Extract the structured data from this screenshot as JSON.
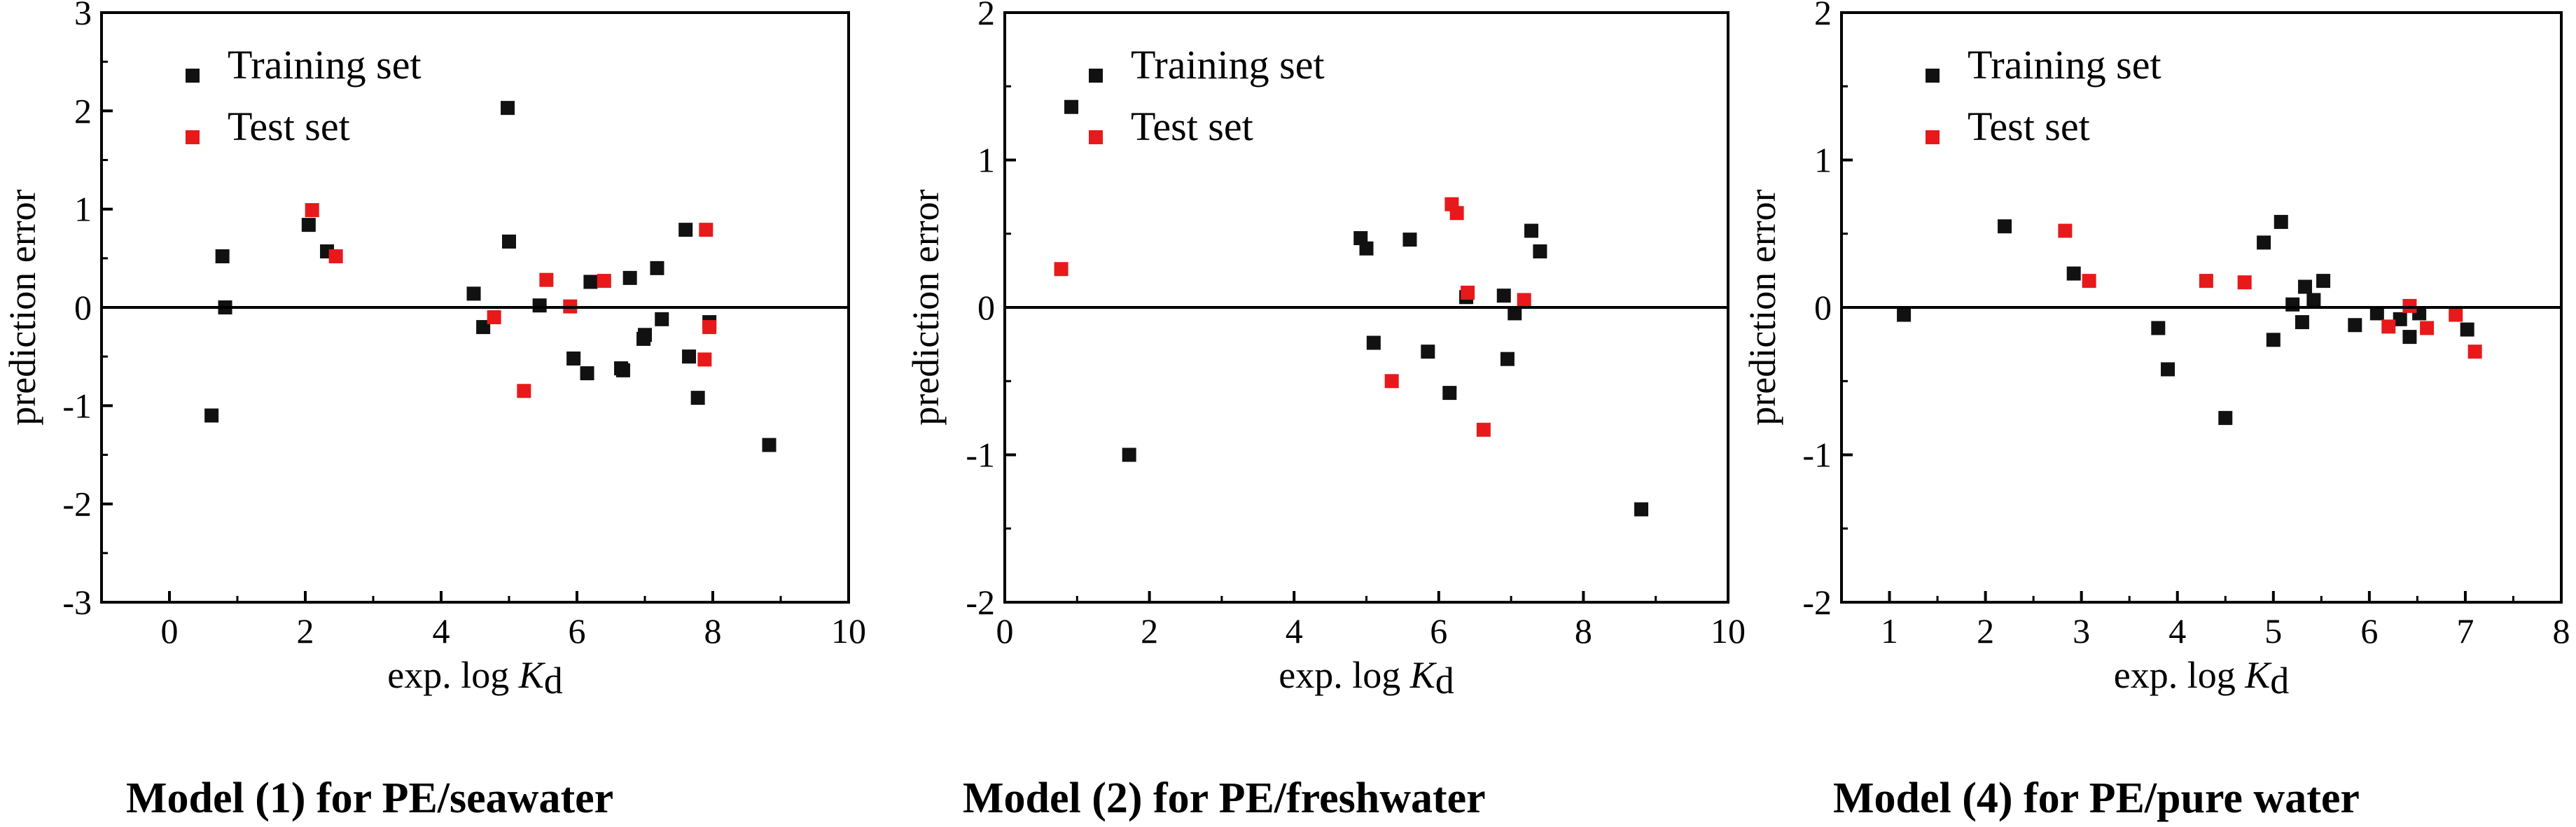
{
  "chart_data": [
    {
      "type": "scatter",
      "panel": 1,
      "caption": "Model (1) for PE/seawater",
      "xlabel_prefix": "exp. log ",
      "xlabel_var": "K",
      "xlabel_sub": "d",
      "ylabel": "prediction error",
      "xlim": [
        -1,
        10
      ],
      "ylim": [
        -3,
        3
      ],
      "xticks": [
        0,
        2,
        4,
        6,
        8,
        10
      ],
      "yticks": [
        -3,
        -2,
        -1,
        0,
        1,
        2,
        3
      ],
      "zero_line": true,
      "colors": {
        "training": "#111111",
        "test": "#e8191b"
      },
      "series": [
        {
          "name": "Training set",
          "color": "#111111",
          "points": [
            [
              0.62,
              -1.1
            ],
            [
              0.78,
              0.52
            ],
            [
              0.82,
              0.0
            ],
            [
              2.05,
              0.84
            ],
            [
              2.32,
              0.57
            ],
            [
              4.48,
              0.14
            ],
            [
              4.62,
              -0.2
            ],
            [
              4.98,
              2.03
            ],
            [
              5.0,
              0.67
            ],
            [
              5.45,
              0.02
            ],
            [
              5.95,
              -0.52
            ],
            [
              6.15,
              -0.67
            ],
            [
              6.2,
              0.26
            ],
            [
              6.65,
              -0.62
            ],
            [
              6.68,
              -0.64
            ],
            [
              6.78,
              0.3
            ],
            [
              6.98,
              -0.32
            ],
            [
              7.0,
              -0.28
            ],
            [
              7.18,
              0.4
            ],
            [
              7.25,
              -0.12
            ],
            [
              7.6,
              0.79
            ],
            [
              7.65,
              -0.5
            ],
            [
              7.78,
              -0.92
            ],
            [
              7.95,
              -0.15
            ],
            [
              8.83,
              -1.4
            ]
          ]
        },
        {
          "name": "Test set",
          "color": "#e8191b",
          "points": [
            [
              2.1,
              0.99
            ],
            [
              2.45,
              0.52
            ],
            [
              4.78,
              -0.1
            ],
            [
              5.22,
              -0.85
            ],
            [
              5.55,
              0.28
            ],
            [
              5.9,
              0.01
            ],
            [
              6.4,
              0.27
            ],
            [
              7.88,
              -0.53
            ],
            [
              7.9,
              0.79
            ],
            [
              7.95,
              -0.2
            ]
          ]
        }
      ]
    },
    {
      "type": "scatter",
      "panel": 2,
      "caption": "Model (2) for PE/freshwater",
      "xlabel_prefix": "exp. log ",
      "xlabel_var": "K",
      "xlabel_sub": "d",
      "ylabel": "prediction error",
      "xlim": [
        0,
        10
      ],
      "ylim": [
        -2,
        2
      ],
      "xticks": [
        0,
        2,
        4,
        6,
        8,
        10
      ],
      "yticks": [
        -2,
        -1,
        0,
        1,
        2
      ],
      "zero_line": true,
      "colors": {
        "training": "#111111",
        "test": "#e8191b"
      },
      "series": [
        {
          "name": "Training set",
          "color": "#111111",
          "points": [
            [
              0.92,
              1.36
            ],
            [
              1.72,
              -1.0
            ],
            [
              4.92,
              0.47
            ],
            [
              5.0,
              0.4
            ],
            [
              5.1,
              -0.24
            ],
            [
              5.6,
              0.46
            ],
            [
              5.85,
              -0.3
            ],
            [
              6.15,
              -0.58
            ],
            [
              6.38,
              0.07
            ],
            [
              6.9,
              0.08
            ],
            [
              6.95,
              -0.35
            ],
            [
              7.05,
              -0.04
            ],
            [
              7.28,
              0.52
            ],
            [
              7.4,
              0.38
            ],
            [
              8.8,
              -1.37
            ]
          ]
        },
        {
          "name": "Test set",
          "color": "#e8191b",
          "points": [
            [
              0.78,
              0.26
            ],
            [
              5.35,
              -0.5
            ],
            [
              6.18,
              0.7
            ],
            [
              6.25,
              0.64
            ],
            [
              6.4,
              0.1
            ],
            [
              6.62,
              -0.83
            ],
            [
              7.18,
              0.05
            ]
          ]
        }
      ]
    },
    {
      "type": "scatter",
      "panel": 3,
      "caption": "Model (4) for PE/pure water",
      "xlabel_prefix": "exp. log ",
      "xlabel_var": "K",
      "xlabel_sub": "d",
      "ylabel": "prediction error",
      "xlim": [
        0.5,
        8
      ],
      "ylim": [
        -2,
        2
      ],
      "xticks": [
        1,
        2,
        3,
        4,
        5,
        6,
        7,
        8
      ],
      "yticks": [
        -2,
        -1,
        0,
        1,
        2
      ],
      "zero_line": true,
      "colors": {
        "training": "#111111",
        "test": "#e8191b"
      },
      "series": [
        {
          "name": "Training set",
          "color": "#111111",
          "points": [
            [
              1.15,
              -0.05
            ],
            [
              2.2,
              0.55
            ],
            [
              2.92,
              0.23
            ],
            [
              3.8,
              -0.14
            ],
            [
              3.9,
              -0.42
            ],
            [
              4.5,
              -0.75
            ],
            [
              4.9,
              0.44
            ],
            [
              5.0,
              -0.22
            ],
            [
              5.08,
              0.58
            ],
            [
              5.2,
              0.02
            ],
            [
              5.3,
              -0.1
            ],
            [
              5.33,
              0.14
            ],
            [
              5.42,
              0.05
            ],
            [
              5.52,
              0.18
            ],
            [
              5.85,
              -0.12
            ],
            [
              6.08,
              -0.04
            ],
            [
              6.32,
              -0.08
            ],
            [
              6.42,
              -0.2
            ],
            [
              6.52,
              -0.04
            ],
            [
              7.02,
              -0.15
            ]
          ]
        },
        {
          "name": "Test set",
          "color": "#e8191b",
          "points": [
            [
              2.83,
              0.52
            ],
            [
              3.08,
              0.18
            ],
            [
              4.3,
              0.18
            ],
            [
              4.7,
              0.17
            ],
            [
              6.2,
              -0.13
            ],
            [
              6.42,
              0.01
            ],
            [
              6.6,
              -0.14
            ],
            [
              6.9,
              -0.05
            ],
            [
              7.1,
              -0.3
            ]
          ]
        }
      ]
    }
  ]
}
